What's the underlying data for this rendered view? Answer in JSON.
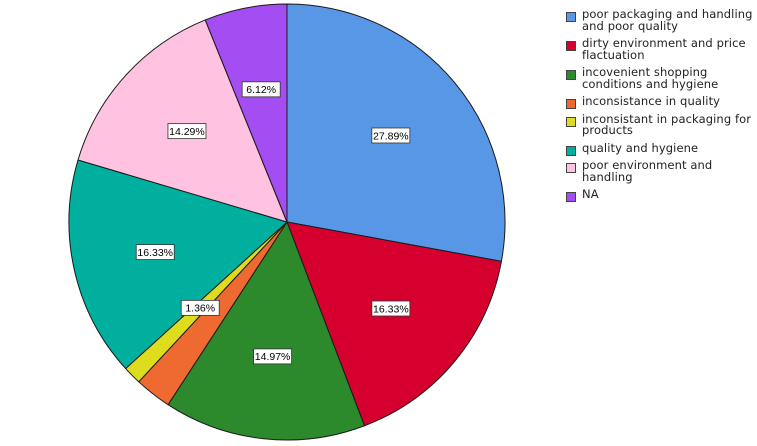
{
  "chart_data": {
    "type": "pie",
    "slices": [
      {
        "label": "poor packaging and handling and poor quality",
        "value": 27.89,
        "display": "27.89%",
        "color": "#5897E5"
      },
      {
        "label": "dirty environment and price flactuation",
        "value": 16.33,
        "display": "16.33%",
        "color": "#D6002E"
      },
      {
        "label": "incovenient shopping conditions and hygiene",
        "value": 14.97,
        "display": "14.97%",
        "color": "#2C8A2C"
      },
      {
        "label": "inconsistance in quality",
        "value": 2.72,
        "display": "",
        "color": "#EE6A30"
      },
      {
        "label": "inconsistant in packaging for products",
        "value": 1.36,
        "display": "1.36%",
        "color": "#DDDD1E"
      },
      {
        "label": "quality and hygiene",
        "value": 16.33,
        "display": "16.33%",
        "color": "#00AF9D"
      },
      {
        "label": "poor environment and handling",
        "value": 14.29,
        "display": "14.29%",
        "color": "#FFC3E1"
      },
      {
        "label": "NA",
        "value": 6.12,
        "display": "6.12%",
        "color": "#A34DF2"
      }
    ],
    "legend_position": "right",
    "start_angle": "12 o'clock",
    "direction": "clockwise"
  }
}
